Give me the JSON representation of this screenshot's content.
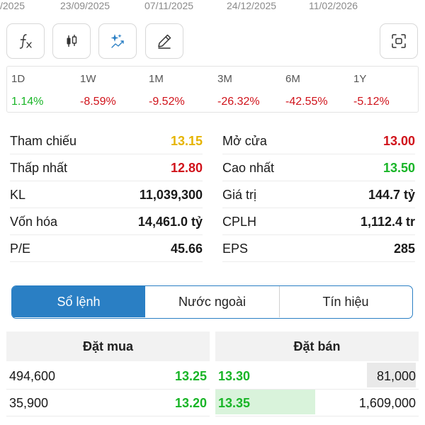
{
  "chart_dates": [
    "/2025",
    "23/09/2025",
    "07/11/2025",
    "24/12/2025",
    "11/02/2026"
  ],
  "toolbar": {
    "buttons": [
      {
        "name": "function-icon"
      },
      {
        "name": "candlestick-icon"
      },
      {
        "name": "sparkle-chart-icon"
      },
      {
        "name": "pencil-icon"
      },
      {
        "name": "scan-icon"
      }
    ]
  },
  "periods": [
    {
      "label": "1D",
      "value": "1.14%",
      "color": "#19b527"
    },
    {
      "label": "1W",
      "value": "-8.59%",
      "color": "#d0131b"
    },
    {
      "label": "1M",
      "value": "-9.52%",
      "color": "#d0131b"
    },
    {
      "label": "3M",
      "value": "-26.32%",
      "color": "#d0131b"
    },
    {
      "label": "6M",
      "value": "-42.55%",
      "color": "#d0131b"
    },
    {
      "label": "1Y",
      "value": "-5.12%",
      "color": "#d0131b"
    }
  ],
  "stats": {
    "left": [
      {
        "label": "Tham chiếu",
        "value": "13.15",
        "color": "#e6b400"
      },
      {
        "label": "Thấp nhất",
        "value": "12.80",
        "color": "#d0131b"
      },
      {
        "label": "KL",
        "value": "11,039,300",
        "color": "#1a1a1a"
      },
      {
        "label": "Vốn hóa",
        "value": "14,461.0 tỷ",
        "color": "#1a1a1a"
      },
      {
        "label": "P/E",
        "value": "45.66",
        "color": "#1a1a1a"
      }
    ],
    "right": [
      {
        "label": "Mở cửa",
        "value": "13.00",
        "color": "#d0131b"
      },
      {
        "label": "Cao nhất",
        "value": "13.50",
        "color": "#19b527"
      },
      {
        "label": "Giá trị",
        "value": "144.7 tỷ",
        "color": "#1a1a1a"
      },
      {
        "label": "CPLH",
        "value": "1,112.4 tr",
        "color": "#1a1a1a"
      },
      {
        "label": "EPS",
        "value": "285",
        "color": "#1a1a1a"
      }
    ]
  },
  "tabs": [
    {
      "label": "Sổ lệnh",
      "active": true
    },
    {
      "label": "Nước ngoài",
      "active": false
    },
    {
      "label": "Tín hiệu",
      "active": false
    }
  ],
  "orderbook": {
    "buy_header": "Đặt mua",
    "sell_header": "Đặt bán",
    "buy": [
      {
        "volume": "494,600",
        "price": "13.25",
        "depth": 0.0
      },
      {
        "volume": "35,900",
        "price": "13.20",
        "depth": 0.0
      }
    ],
    "sell": [
      {
        "price": "13.30",
        "volume": "81,000",
        "depth": 0.24
      },
      {
        "price": "13.35",
        "volume": "1,609,000",
        "depth": 0.49
      }
    ]
  }
}
